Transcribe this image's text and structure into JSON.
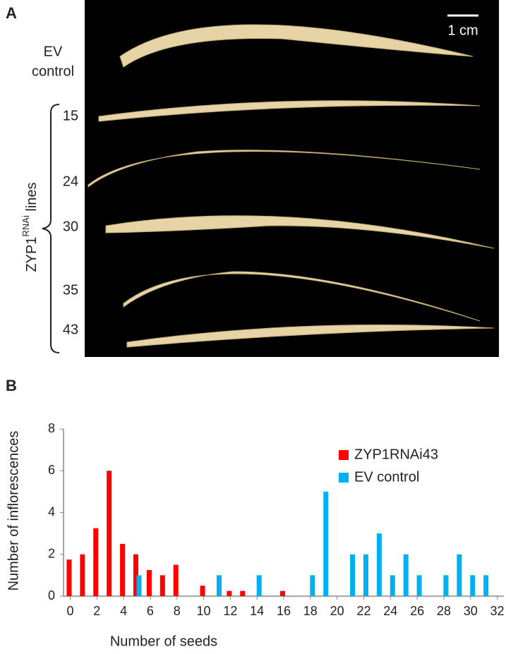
{
  "panel_a": {
    "label": "A",
    "scale_bar": "1 cm",
    "control_label": [
      "EV",
      "control"
    ],
    "line_labels": [
      "15",
      "24",
      "30",
      "35",
      "43"
    ],
    "group_label": {
      "main": "ZYP1",
      "superscript": "RNAi",
      "suffix": " lines"
    }
  },
  "chart_data": {
    "type": "bar",
    "panel_label": "B",
    "x_label": "Number of seeds",
    "y_label": "Number of inflorescences",
    "xlim": [
      -0.5,
      32.5
    ],
    "xticks": [
      0,
      2,
      4,
      6,
      8,
      10,
      12,
      14,
      16,
      18,
      20,
      22,
      24,
      26,
      28,
      30,
      32
    ],
    "ylim": [
      0,
      8
    ],
    "yticks": [
      0,
      2,
      4,
      6,
      8
    ],
    "grid": false,
    "legend": "upper right",
    "series": [
      {
        "name": "ZYP1RNAi43",
        "color": "#ff0000",
        "x": [
          0,
          1,
          2,
          3,
          4,
          5,
          6,
          7,
          8,
          10,
          12,
          13,
          16
        ],
        "values": [
          1.75,
          2,
          3.25,
          6,
          2.5,
          2,
          1.25,
          1,
          1.5,
          0.5,
          0.25,
          0.25,
          0.25
        ]
      },
      {
        "name": "EV control",
        "color": "#00b0f0",
        "x": [
          5,
          11,
          14,
          18,
          19,
          21,
          22,
          23,
          24,
          25,
          26,
          28,
          29,
          30,
          31
        ],
        "values": [
          1,
          1,
          1,
          1,
          5,
          2,
          2,
          3,
          1,
          2,
          1,
          1,
          2,
          1,
          1
        ]
      }
    ]
  }
}
